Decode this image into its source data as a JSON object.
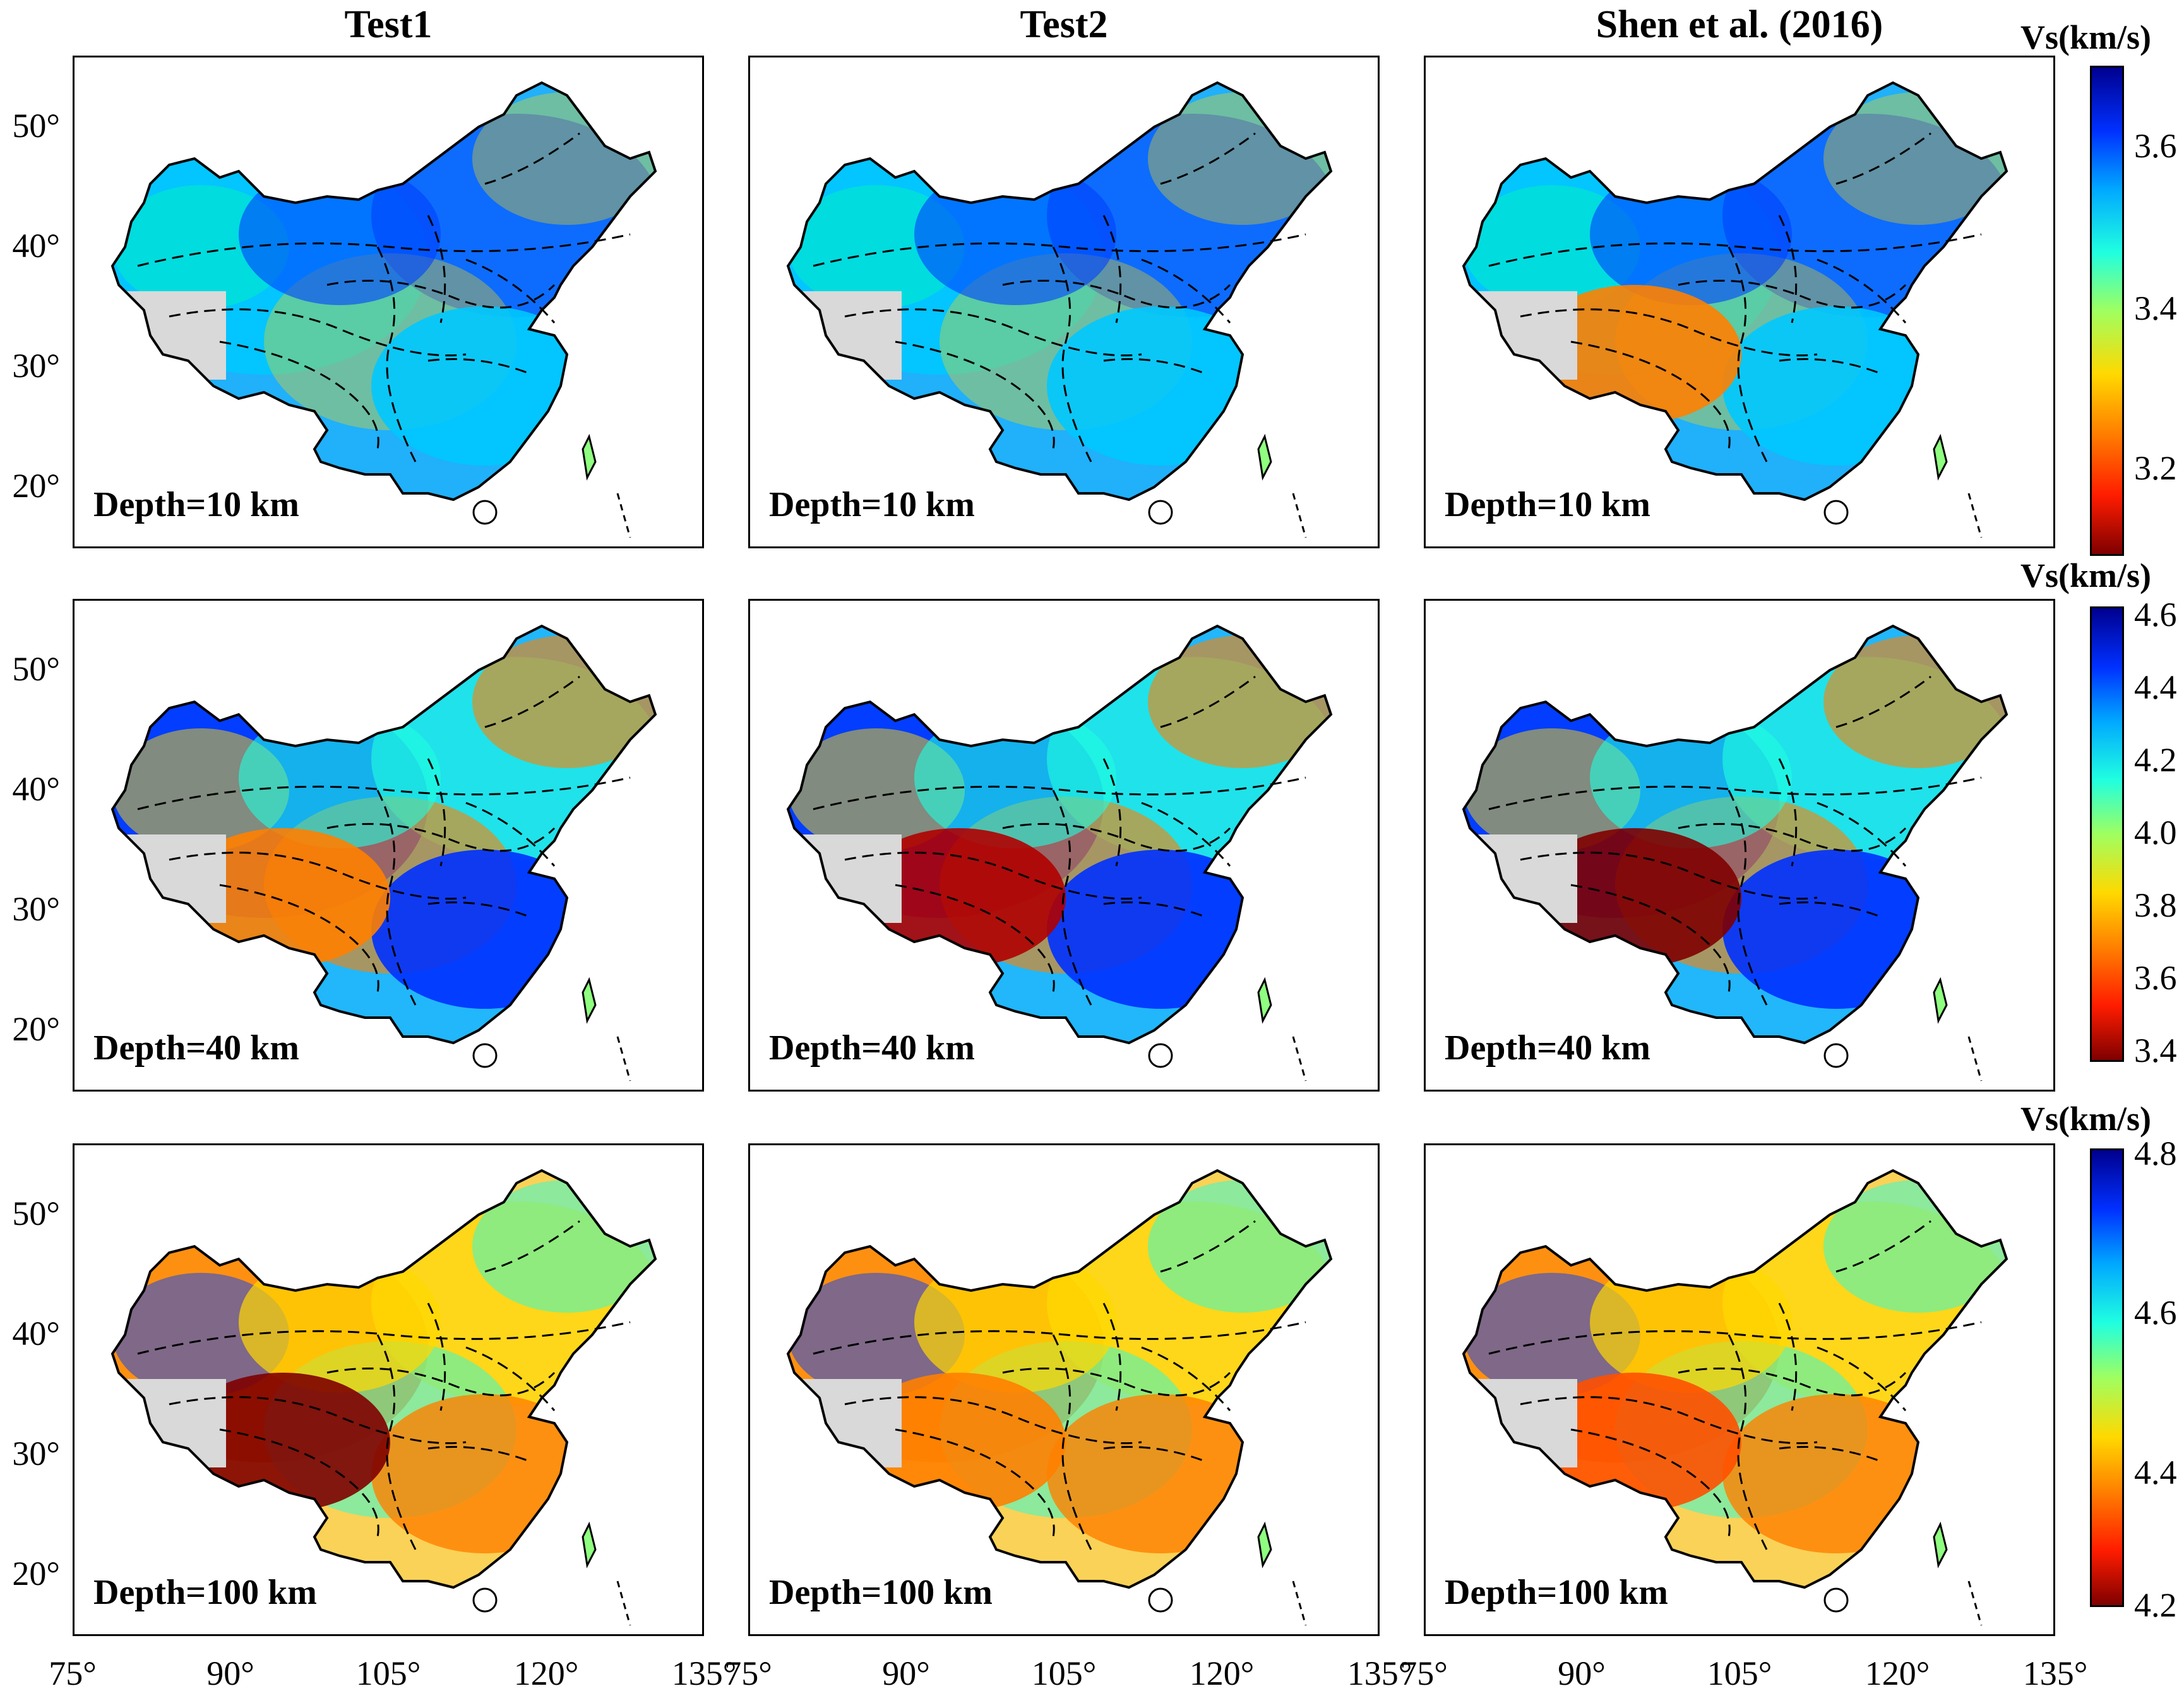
{
  "columns": [
    "Test1",
    "Test2",
    "Shen et al. (2016)"
  ],
  "depth_labels": [
    "Depth=10 km",
    "Depth=40 km",
    "Depth=100 km"
  ],
  "latitude_labels": [
    "50°",
    "40°",
    "30°",
    "20°"
  ],
  "longitude_labels": [
    "75°",
    "90°",
    "105°",
    "120°",
    "135°"
  ],
  "colorbars": [
    {
      "title": "Vs(km/s)",
      "ticks": [
        "3.6",
        "3.4",
        "3.2"
      ]
    },
    {
      "title": "Vs(km/s)",
      "ticks": [
        "4.6",
        "4.4",
        "4.2",
        "4.0",
        "3.8",
        "3.6",
        "3.4"
      ]
    },
    {
      "title": "Vs(km/s)",
      "ticks": [
        "4.8",
        "4.6",
        "4.4",
        "4.2"
      ]
    }
  ],
  "colors": {
    "land": "#d9d9d9",
    "slow": "#7f0000",
    "fast": "#00008f",
    "mid": "#20ffe0"
  }
}
